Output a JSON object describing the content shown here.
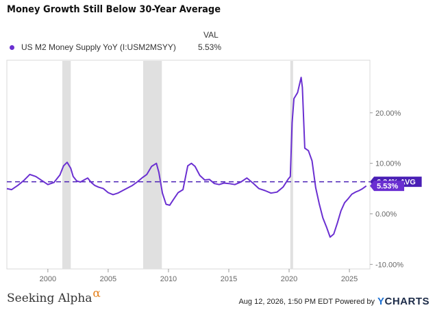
{
  "title": "Money Growth Still Below 30-Year Average",
  "legend": {
    "header": "VAL",
    "series_label": "US M2 Money Supply YoY (I:USM2MSYY)",
    "series_value": "5.53%"
  },
  "footer": {
    "brand": "Seeking Alpha",
    "brand_mark": "α",
    "timestamp": "Aug 12, 2026, 1:50 PM EDT  Powered by",
    "powered_brand_y": "Y",
    "powered_brand_rest": "CHARTS"
  },
  "colors": {
    "series": "#6a2fd1",
    "average_line": "#4a1fb5",
    "recession": "#e0e0e0",
    "axis_text": "#666666",
    "frame": "#d8d8d8"
  },
  "chart_data": {
    "type": "line",
    "title": "Money Growth Still Below 30-Year Average",
    "xlabel": "",
    "ylabel": "",
    "xlim": [
      1996.6,
      2026.7
    ],
    "ylim": [
      -10.9,
      30.4
    ],
    "x_ticks": [
      {
        "value": 2000,
        "label": "2000"
      },
      {
        "value": 2005,
        "label": "2005"
      },
      {
        "value": 2010,
        "label": "2010"
      },
      {
        "value": 2015,
        "label": "2015"
      },
      {
        "value": 2020,
        "label": "2020"
      },
      {
        "value": 2025,
        "label": "2025"
      }
    ],
    "y_ticks": [
      {
        "value": 20,
        "label": "20.00%"
      },
      {
        "value": 10,
        "label": "10.00%"
      },
      {
        "value": 0,
        "label": "0.00%"
      },
      {
        "value": -10,
        "label": "-10.00%"
      }
    ],
    "grid": false,
    "legend_position": "top-left",
    "average": {
      "value": 6.34,
      "label": "6.34% AVG"
    },
    "last_value": {
      "value": 5.53,
      "label": "5.53%"
    },
    "recessions": [
      [
        2001.2,
        2001.9
      ],
      [
        2007.9,
        2009.45
      ],
      [
        2020.1,
        2020.33
      ]
    ],
    "series": [
      {
        "name": "US M2 Money Supply YoY (I:USM2MSYY)",
        "x": [
          1996.6,
          1997.0,
          1997.5,
          1998.0,
          1998.5,
          1999.0,
          1999.5,
          2000.0,
          2000.5,
          2001.0,
          2001.3,
          2001.6,
          2001.9,
          2002.1,
          2002.4,
          2002.7,
          2003.0,
          2003.3,
          2003.6,
          2003.9,
          2004.2,
          2004.6,
          2005.0,
          2005.4,
          2005.8,
          2006.2,
          2006.6,
          2007.0,
          2007.4,
          2007.8,
          2008.2,
          2008.6,
          2009.0,
          2009.2,
          2009.5,
          2009.8,
          2010.1,
          2010.4,
          2010.8,
          2011.2,
          2011.6,
          2011.9,
          2012.2,
          2012.6,
          2013.0,
          2013.4,
          2013.8,
          2014.2,
          2014.6,
          2015.0,
          2015.5,
          2016.0,
          2016.5,
          2017.0,
          2017.5,
          2018.0,
          2018.5,
          2019.0,
          2019.5,
          2019.9,
          2020.1,
          2020.25,
          2020.4,
          2020.7,
          2021.0,
          2021.1,
          2021.3,
          2021.6,
          2021.9,
          2022.2,
          2022.5,
          2022.8,
          2023.1,
          2023.4,
          2023.7,
          2024.0,
          2024.3,
          2024.6,
          2024.9,
          2025.2,
          2025.5,
          2025.8,
          2026.1,
          2026.4
        ],
        "values": [
          5.0,
          4.8,
          5.6,
          6.6,
          7.8,
          7.4,
          6.6,
          5.8,
          6.2,
          7.7,
          9.5,
          10.2,
          9.0,
          7.4,
          6.5,
          6.3,
          6.7,
          7.1,
          6.2,
          5.6,
          5.3,
          5.0,
          4.2,
          3.8,
          4.1,
          4.6,
          5.1,
          5.6,
          6.3,
          7.1,
          7.8,
          9.4,
          10.0,
          8.2,
          4.1,
          1.9,
          1.7,
          2.8,
          4.2,
          4.8,
          9.5,
          10.0,
          9.4,
          7.6,
          6.7,
          6.8,
          6.0,
          5.8,
          6.1,
          6.0,
          5.8,
          6.3,
          7.1,
          6.1,
          5.0,
          4.6,
          4.1,
          4.3,
          5.3,
          6.8,
          7.4,
          18.0,
          22.8,
          24.0,
          27.0,
          25.0,
          13.0,
          12.5,
          10.5,
          5.2,
          2.0,
          -0.8,
          -2.6,
          -4.6,
          -4.0,
          -1.8,
          0.6,
          2.2,
          3.0,
          3.9,
          4.3,
          4.6,
          5.0,
          5.53
        ]
      }
    ]
  }
}
